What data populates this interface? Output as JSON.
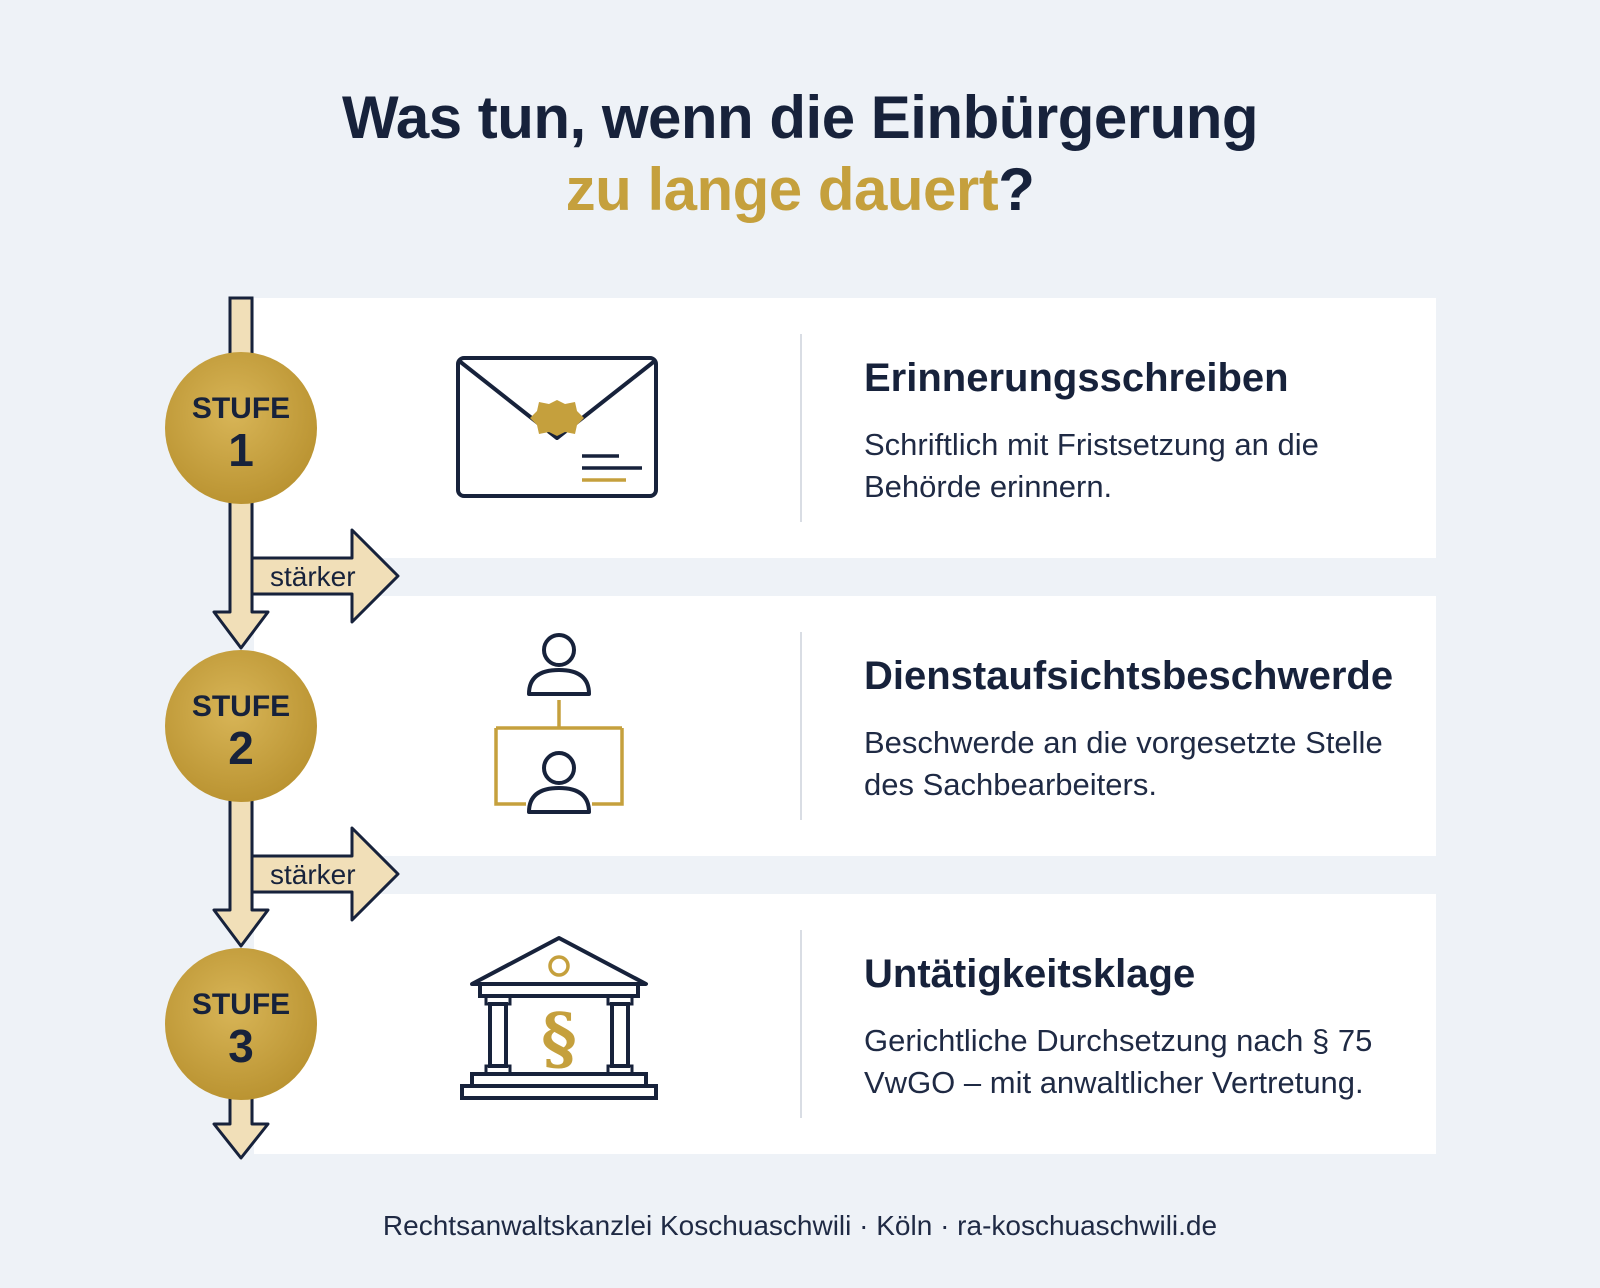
{
  "title": {
    "line1": "Was tun, wenn die Einbürgerung",
    "line2_accent": "zu lange dauert",
    "line2_suffix": "?"
  },
  "steps": [
    {
      "badge_label": "STUFE",
      "badge_number": "1",
      "title": "Erinnerungsschreiben",
      "description": "Schriftlich mit Fristsetzung an die Behörde erinnern.",
      "icon": "envelope-icon"
    },
    {
      "badge_label": "STUFE",
      "badge_number": "2",
      "title": "Dienstaufsichtsbeschwerde",
      "description": "Beschwerde an die vorgesetzte Stelle des Sachbearbeiters.",
      "icon": "hierarchy-icon"
    },
    {
      "badge_label": "STUFE",
      "badge_number": "3",
      "title": "Untätigkeitsklage",
      "description": "Gerichtliche Durchsetzung nach § 75 VwGO – mit anwaltlicher Vertretung.",
      "icon": "courthouse-icon"
    }
  ],
  "escalations": [
    {
      "label": "stärker"
    },
    {
      "label": "stärker"
    }
  ],
  "footer": "Rechtsanwaltskanzlei Koschuaschwili · Köln · ra-koschuaschwili.de",
  "colors": {
    "navy": "#17223b",
    "gold": "#c5a03d",
    "cream": "#f1dfb8",
    "background": "#eef2f7",
    "card": "#ffffff"
  }
}
